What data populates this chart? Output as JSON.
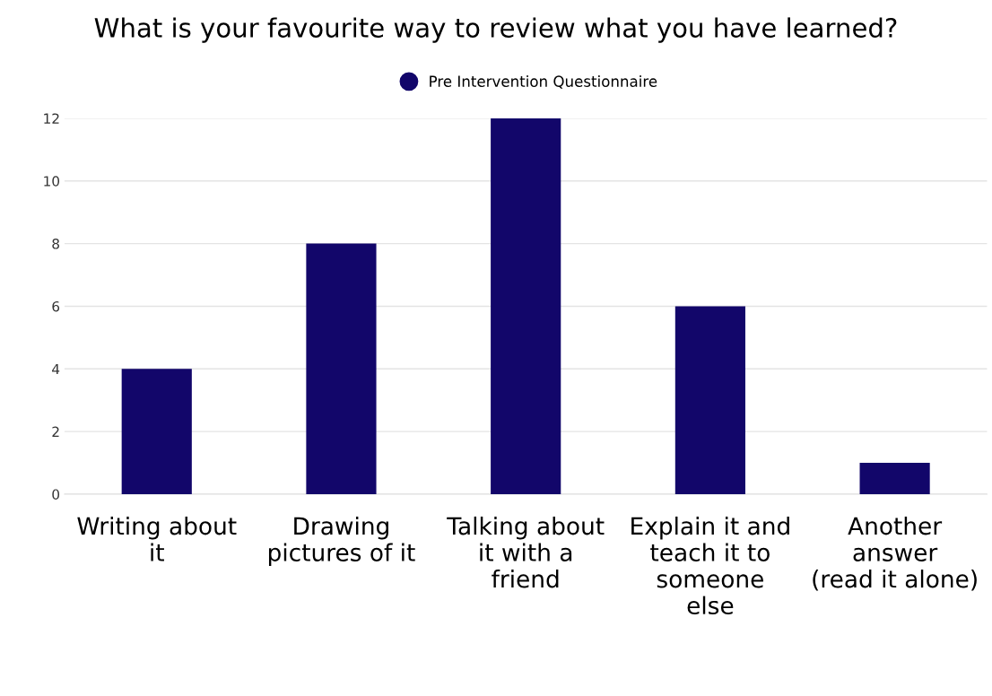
{
  "chart_data": {
    "type": "bar",
    "title": "What is your favourite way to review what you have learned?",
    "categories": [
      "Writing about\nit",
      "Drawing\npictures of it",
      "Talking about\nit with a\nfriend",
      "Explain it and\nteach it to\nsomeone\nelse",
      "Another\nanswer\n(read it alone)"
    ],
    "series": [
      {
        "name": "Pre Intervention Questionnaire",
        "color": "#12066a",
        "values": [
          4,
          8,
          12,
          6,
          1
        ]
      }
    ],
    "ylim": [
      0,
      12
    ],
    "yticks": [
      0,
      2,
      4,
      6,
      8,
      10,
      12
    ],
    "grid": "y",
    "legend": "top"
  }
}
